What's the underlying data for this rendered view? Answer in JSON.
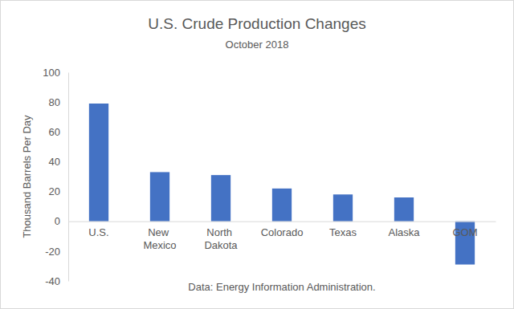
{
  "chart_data": {
    "type": "bar",
    "title": "U.S. Crude Production Changes",
    "subtitle": "October 2018",
    "y_label": "Thousand Barrels Per Day",
    "annotations": [
      "Data: Energy Information Administration."
    ],
    "categories": [
      "U.S.",
      "New Mexico",
      "North Dakota",
      "Colorado",
      "Texas",
      "Alaska",
      "GOM"
    ],
    "values": [
      79,
      33,
      31,
      22,
      18,
      16,
      -29
    ],
    "color": "#4472c4",
    "ylim": [
      -40,
      100
    ],
    "yticks": [
      -40,
      -20,
      0,
      20,
      40,
      60,
      80,
      100
    ],
    "grid": false
  }
}
